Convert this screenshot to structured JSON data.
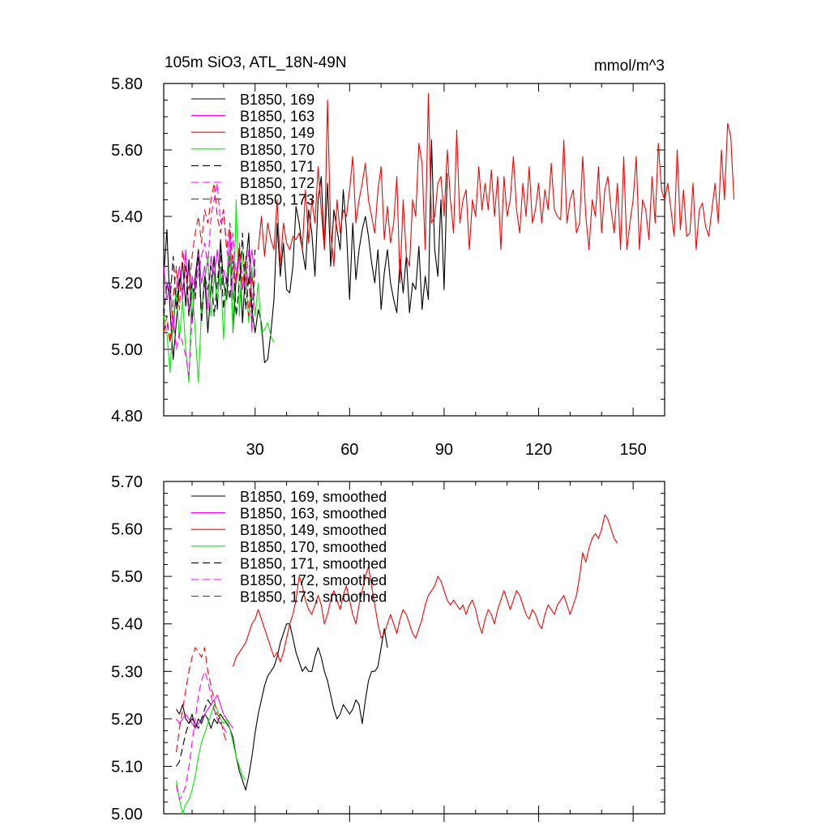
{
  "chart_data": [
    {
      "type": "line",
      "title": "105m SiO3, ATL_18N-49N",
      "units": "mmol/m^3",
      "xlim": [
        1,
        160
      ],
      "ylim": [
        4.8,
        5.8
      ],
      "xticks": [
        30,
        60,
        90,
        120,
        150
      ],
      "xtick_labels": [
        "30",
        "60",
        "90",
        "120",
        "150"
      ],
      "yticks": [
        4.8,
        5.0,
        5.2,
        5.4,
        5.6,
        5.8
      ],
      "ytick_labels": [
        "4.80",
        "5.00",
        "5.20",
        "5.40",
        "5.60",
        "5.80"
      ],
      "legend_position": "top-left",
      "series": [
        {
          "name": "B1850, 169",
          "color": "#000000",
          "dash": "solid",
          "x_start": 1,
          "values": [
            5.22,
            5.36,
            5.12,
            4.97,
            5.08,
            5.2,
            5.26,
            5.13,
            5.27,
            5.08,
            5.22,
            5.3,
            5.1,
            5.22,
            5.05,
            5.18,
            5.28,
            5.12,
            5.33,
            5.2,
            5.15,
            5.3,
            5.05,
            5.22,
            5.3,
            5.08,
            5.25,
            5.35,
            5.12,
            5.05,
            5.12,
            5.08,
            4.96,
            4.97,
            5.05,
            5.15,
            5.38,
            5.22,
            5.32,
            5.18,
            5.17,
            5.25,
            5.43,
            5.38,
            5.3,
            5.24,
            5.42,
            5.35,
            5.22,
            5.45,
            5.52,
            5.3,
            5.5,
            5.25,
            5.42,
            5.36,
            5.3,
            5.48,
            5.36,
            5.15,
            5.38,
            5.21,
            5.3,
            5.36,
            5.4,
            5.34,
            5.26,
            5.2,
            5.3,
            5.12,
            5.23,
            5.3,
            5.2,
            5.15,
            5.11,
            5.27,
            5.17,
            5.28,
            5.11,
            5.2,
            5.18,
            5.31,
            5.12,
            5.22,
            5.15,
            5.63,
            5.3,
            5.22,
            5.45,
            5.18,
            5.53
          ]
        },
        {
          "name": "B1850, 163",
          "color": "#ff00ff",
          "dash": "solid",
          "x_start": 1,
          "values": [
            5.25,
            5.15,
            5.2,
            5.05,
            5.18,
            5.25,
            5.15,
            5.3,
            5.1,
            5.22,
            5.18,
            5.3,
            5.2,
            5.25,
            5.12,
            5.28,
            5.22,
            5.3,
            5.18,
            5.24,
            5.2,
            5.36,
            5.15,
            5.22,
            5.28,
            5.18,
            5.24,
            5.2,
            5.3,
            5.22
          ]
        },
        {
          "name": "B1850, 149",
          "color": "#ff0000",
          "dash": "solid",
          "x_start": 31,
          "values": [
            5.3,
            5.4,
            5.28,
            5.38,
            5.33,
            5.3,
            5.45,
            5.25,
            5.38,
            5.32,
            5.3,
            5.34,
            5.33,
            5.35,
            5.3,
            5.48,
            5.32,
            5.45,
            5.38,
            5.55,
            5.42,
            5.3,
            5.75,
            5.35,
            5.25,
            5.45,
            5.35,
            5.42,
            5.4,
            5.48,
            5.58,
            5.38,
            5.45,
            5.5,
            5.56,
            5.45,
            5.4,
            5.35,
            5.48,
            5.55,
            5.33,
            5.43,
            5.32,
            5.38,
            5.52,
            5.2,
            5.45,
            5.28,
            5.25,
            5.45,
            5.4,
            5.62,
            5.56,
            5.3,
            5.77,
            5.38,
            5.4,
            5.5,
            5.52,
            5.4,
            5.6,
            5.45,
            5.35,
            5.66,
            5.38,
            5.45,
            5.48,
            5.3,
            5.45,
            5.4,
            5.55,
            5.42,
            5.5,
            5.42,
            5.54,
            5.4,
            5.52,
            5.3,
            5.52,
            5.4,
            5.45,
            5.58,
            5.42,
            5.35,
            5.5,
            5.4,
            5.55,
            5.38,
            5.42,
            5.5,
            5.38,
            5.48,
            5.42,
            5.56,
            5.42,
            5.4,
            5.39,
            5.63,
            5.38,
            5.45,
            5.48,
            5.35,
            5.38,
            5.58,
            5.4,
            5.3,
            5.45,
            5.4,
            5.55,
            5.35,
            5.48,
            5.52,
            5.42,
            5.35,
            5.5,
            5.3,
            5.58,
            5.3,
            5.38,
            5.45,
            5.58,
            5.3,
            5.45,
            5.42,
            5.33,
            5.52,
            5.38,
            5.62,
            5.48,
            5.45,
            5.5,
            5.42,
            5.34,
            5.6,
            5.36,
            5.48,
            5.34,
            5.35,
            5.5,
            5.3,
            5.42,
            5.44,
            5.37,
            5.34,
            5.42,
            5.5,
            5.38,
            5.6,
            5.45,
            5.68,
            5.64,
            5.45
          ]
        },
        {
          "name": "B1850, 170",
          "color": "#00ee00",
          "dash": "solid",
          "x_start": 1,
          "values": [
            5.1,
            5.05,
            4.93,
            5.1,
            5.18,
            5.03,
            5.15,
            5.0,
            4.9,
            5.2,
            5.05,
            4.9,
            5.12,
            5.2,
            5.28,
            5.1,
            5.22,
            5.15,
            5.25,
            5.03,
            5.22,
            5.3,
            5.05,
            5.45,
            5.1,
            5.3,
            5.22,
            5.08,
            5.25,
            5.1,
            5.2,
            5.05,
            5.06,
            5.08,
            5.04,
            5.02
          ]
        },
        {
          "name": "B1850, 171",
          "color": "#000000",
          "dash": "dashed",
          "x_start": 1,
          "values": [
            5.1,
            5.2,
            5.15,
            5.28,
            5.12,
            5.22,
            5.18,
            5.25,
            5.1,
            5.2,
            5.15,
            5.3,
            5.08,
            5.22,
            5.18,
            5.25,
            5.1,
            5.2,
            5.3,
            5.12,
            5.22,
            5.15,
            5.28,
            5.1,
            5.2,
            5.35,
            5.12,
            5.22,
            5.08,
            5.3
          ]
        },
        {
          "name": "B1850, 172",
          "color": "#ff00ff",
          "dash": "dashed",
          "x_start": 1,
          "values": [
            5.05,
            5.08,
            5.02,
            5.1,
            5.0,
            5.05,
            5.02,
            4.98,
            4.92,
            5.1,
            5.2,
            5.22,
            5.28,
            5.32,
            5.25,
            5.4,
            5.45,
            5.5,
            5.38,
            5.42,
            5.3,
            5.25,
            5.35,
            5.2,
            5.28,
            5.22,
            5.18,
            5.3,
            5.05,
            5.25
          ]
        },
        {
          "name": "B1850, 173",
          "color": "#ff0000",
          "dash": "dashed",
          "x_start": 1,
          "values": [
            5.05,
            5.1,
            5.02,
            5.15,
            5.25,
            5.12,
            5.3,
            5.22,
            5.18,
            5.28,
            5.35,
            5.4,
            5.32,
            5.42,
            5.38,
            5.45,
            5.5,
            5.4,
            5.35,
            5.42,
            5.3,
            5.38,
            5.25,
            5.2,
            5.32,
            5.18,
            5.28,
            5.1,
            5.22,
            5.15
          ]
        }
      ]
    },
    {
      "type": "line",
      "title": "",
      "units": "",
      "xlim": [
        1,
        160
      ],
      "ylim": [
        5.0,
        5.7
      ],
      "xticks": [
        30,
        60,
        90,
        120,
        150
      ],
      "xtick_labels": [
        "",
        "",
        "",
        "",
        ""
      ],
      "yticks": [
        5.0,
        5.1,
        5.2,
        5.3,
        5.4,
        5.5,
        5.6,
        5.7
      ],
      "ytick_labels": [
        "5.00",
        "5.10",
        "5.20",
        "5.30",
        "5.40",
        "5.50",
        "5.60",
        "5.70"
      ],
      "legend_position": "top-left",
      "series": [
        {
          "name": "B1850, 169, smoothed",
          "color": "#000000",
          "dash": "solid",
          "x_start": 5,
          "values": [
            5.22,
            5.21,
            5.23,
            5.2,
            5.19,
            5.21,
            5.18,
            5.2,
            5.19,
            5.21,
            5.2,
            5.18,
            5.2,
            5.19,
            5.21,
            5.2,
            5.19,
            5.18,
            5.16,
            5.12,
            5.09,
            5.07,
            5.05,
            5.08,
            5.12,
            5.17,
            5.21,
            5.24,
            5.27,
            5.29,
            5.3,
            5.31,
            5.33,
            5.36,
            5.38,
            5.4,
            5.4,
            5.37,
            5.34,
            5.32,
            5.3,
            5.31,
            5.3,
            5.3,
            5.33,
            5.35,
            5.33,
            5.3,
            5.28,
            5.25,
            5.22,
            5.2,
            5.21,
            5.23,
            5.22,
            5.21,
            5.22,
            5.24,
            5.23,
            5.19,
            5.24,
            5.28,
            5.3,
            5.3,
            5.31,
            5.35,
            5.39,
            5.35
          ]
        },
        {
          "name": "B1850, 163, smoothed",
          "color": "#ff00ff",
          "dash": "solid",
          "x_start": 5,
          "values": [
            5.2,
            5.19,
            5.2,
            5.21,
            5.2,
            5.19,
            5.18,
            5.19,
            5.2,
            5.21,
            5.22,
            5.23,
            5.24,
            5.25,
            5.23,
            5.21,
            5.2,
            5.19,
            5.18
          ]
        },
        {
          "name": "B1850, 149, smoothed",
          "color": "#ff0000",
          "dash": "solid",
          "x_start": 23,
          "values": [
            5.31,
            5.33,
            5.34,
            5.35,
            5.36,
            5.38,
            5.4,
            5.41,
            5.43,
            5.41,
            5.39,
            5.37,
            5.35,
            5.33,
            5.34,
            5.32,
            5.34,
            5.37,
            5.4,
            5.42,
            5.45,
            5.5,
            5.48,
            5.45,
            5.43,
            5.42,
            5.44,
            5.46,
            5.44,
            5.4,
            5.42,
            5.45,
            5.47,
            5.45,
            5.43,
            5.46,
            5.48,
            5.45,
            5.42,
            5.4,
            5.44,
            5.47,
            5.5,
            5.52,
            5.48,
            5.44,
            5.4,
            5.37,
            5.38,
            5.4,
            5.42,
            5.4,
            5.38,
            5.41,
            5.43,
            5.42,
            5.4,
            5.38,
            5.37,
            5.39,
            5.41,
            5.44,
            5.46,
            5.47,
            5.48,
            5.5,
            5.49,
            5.47,
            5.45,
            5.44,
            5.45,
            5.44,
            5.43,
            5.44,
            5.42,
            5.44,
            5.45,
            5.43,
            5.4,
            5.38,
            5.41,
            5.43,
            5.42,
            5.4,
            5.43,
            5.45,
            5.47,
            5.45,
            5.43,
            5.45,
            5.47,
            5.46,
            5.44,
            5.42,
            5.41,
            5.43,
            5.42,
            5.4,
            5.39,
            5.42,
            5.44,
            5.43,
            5.42,
            5.44,
            5.45,
            5.46,
            5.44,
            5.42,
            5.44,
            5.46,
            5.5,
            5.55,
            5.53,
            5.56,
            5.58,
            5.59,
            5.58,
            5.6,
            5.63,
            5.62,
            5.6,
            5.58,
            5.57
          ]
        },
        {
          "name": "B1850, 170, smoothed",
          "color": "#00ee00",
          "dash": "solid",
          "x_start": 5,
          "values": [
            5.07,
            5.03,
            5.0,
            5.02,
            5.03,
            5.05,
            5.08,
            5.12,
            5.15,
            5.17,
            5.19,
            5.21,
            5.23,
            5.22,
            5.2,
            5.19,
            5.2,
            5.18,
            5.15,
            5.12,
            5.1,
            5.08,
            5.07
          ]
        },
        {
          "name": "B1850, 171, smoothed",
          "color": "#000000",
          "dash": "dashed",
          "x_start": 5,
          "values": [
            5.1,
            5.11,
            5.14,
            5.17,
            5.19,
            5.2,
            5.19,
            5.18,
            5.2,
            5.22,
            5.24,
            5.23,
            5.22,
            5.2,
            5.19,
            5.2
          ]
        },
        {
          "name": "B1850, 172, smoothed",
          "color": "#ff00ff",
          "dash": "dashed",
          "x_start": 5,
          "values": [
            5.06,
            5.03,
            5.04,
            5.06,
            5.1,
            5.15,
            5.2,
            5.25,
            5.28,
            5.3,
            5.28,
            5.25,
            5.22,
            5.2,
            5.19,
            5.18,
            5.17
          ]
        },
        {
          "name": "B1850, 173, smoothed",
          "color": "#ff0000",
          "dash": "dashed",
          "x_start": 5,
          "values": [
            5.13,
            5.18,
            5.22,
            5.26,
            5.3,
            5.33,
            5.35,
            5.34,
            5.33,
            5.35,
            5.3,
            5.27,
            5.24,
            5.21,
            5.2,
            5.17,
            5.15
          ]
        }
      ]
    }
  ]
}
